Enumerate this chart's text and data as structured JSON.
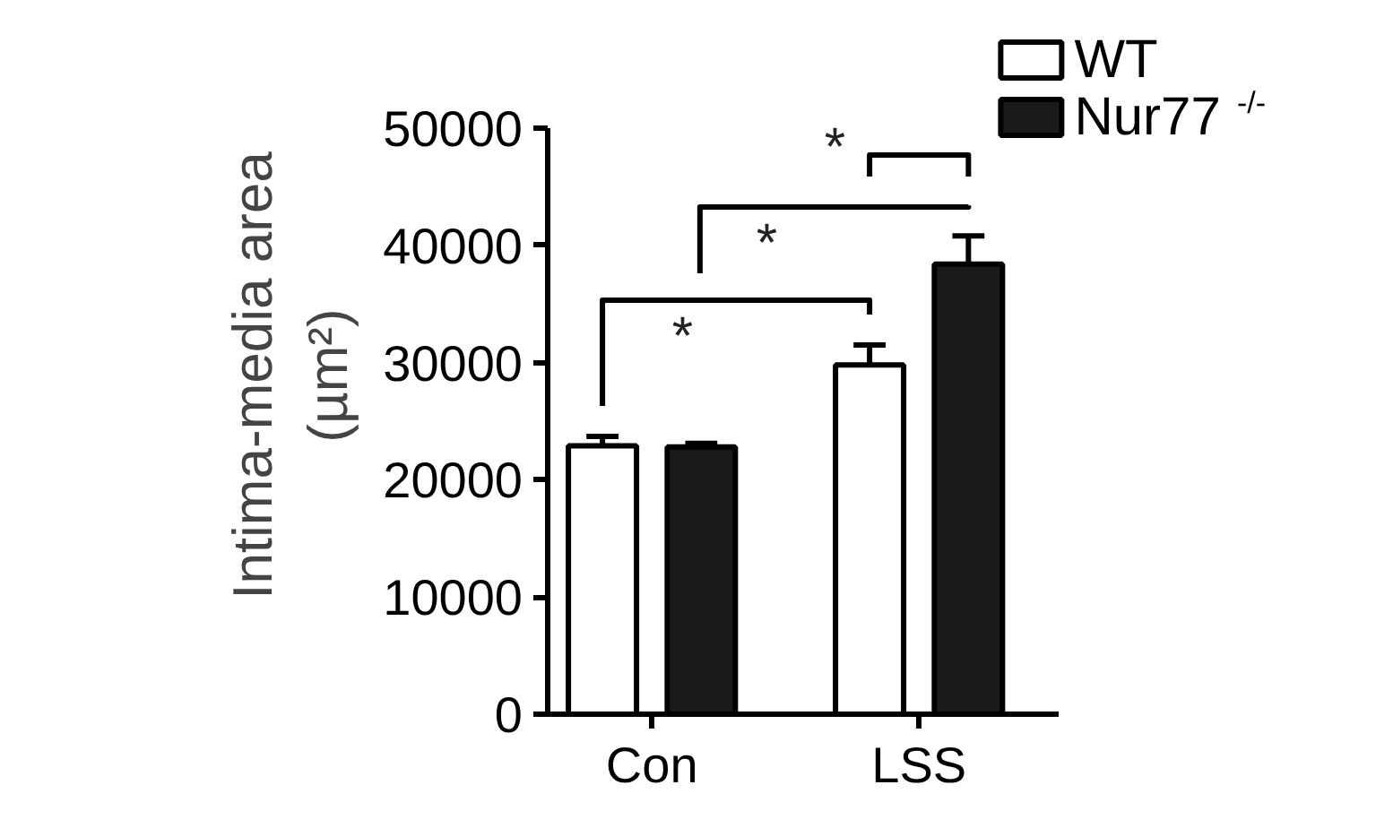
{
  "chart_data": {
    "type": "bar",
    "ylabel": "Intima-media area (µm²)",
    "categories": [
      "Con",
      "LSS"
    ],
    "series": [
      {
        "name": "WT",
        "color": "#ffffff",
        "values": [
          22900,
          29800
        ],
        "errors": [
          800,
          1700
        ]
      },
      {
        "name": "Nur77$^{-/-}$",
        "color": "#1a1a1a",
        "values": [
          22800,
          38400
        ],
        "errors": [
          300,
          2400
        ]
      }
    ],
    "ylim": [
      0,
      50000
    ],
    "yticks": [
      0,
      10000,
      20000,
      30000,
      40000,
      50000
    ],
    "grid": false,
    "legend": "top right",
    "annotations": [
      "*",
      "*",
      "*"
    ]
  }
}
